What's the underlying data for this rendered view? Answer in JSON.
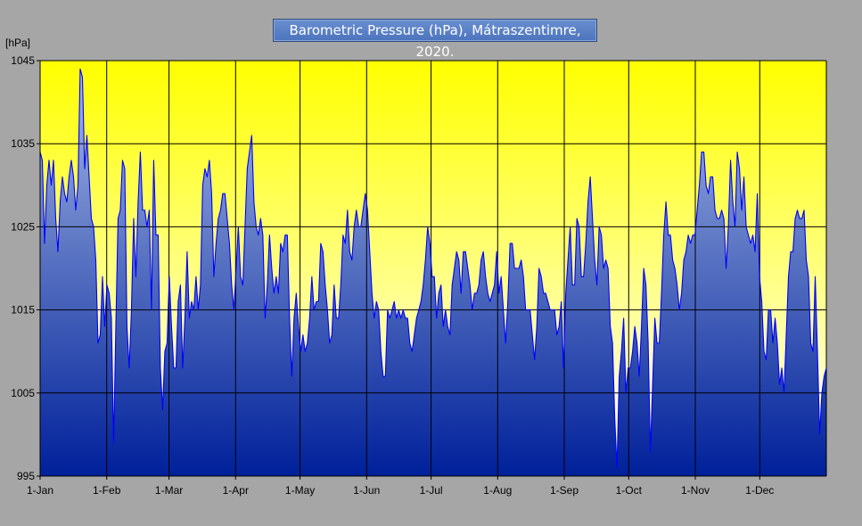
{
  "chart_data": {
    "type": "area",
    "title": "Barometric Pressure (hPa), Mátraszentimre, 2020.",
    "ylabel": "[hPa]",
    "xlabel": "",
    "ylim": [
      995,
      1045
    ],
    "yticks": [
      995,
      1005,
      1015,
      1025,
      1035,
      1045
    ],
    "xlim": [
      0,
      366
    ],
    "xticks": [
      {
        "day": 0,
        "label": "1-Jan"
      },
      {
        "day": 31,
        "label": "1-Feb"
      },
      {
        "day": 60,
        "label": "1-Mar"
      },
      {
        "day": 91,
        "label": "1-Apr"
      },
      {
        "day": 121,
        "label": "1-May"
      },
      {
        "day": 152,
        "label": "1-Jun"
      },
      {
        "day": 182,
        "label": "1-Jul"
      },
      {
        "day": 213,
        "label": "1-Aug"
      },
      {
        "day": 244,
        "label": "1-Sep"
      },
      {
        "day": 274,
        "label": "1-Oct"
      },
      {
        "day": 305,
        "label": "1-Nov"
      },
      {
        "day": 335,
        "label": "1-Dec"
      }
    ],
    "grid": true,
    "colors": {
      "plot_top": "#ffff00",
      "plot_bottom": "#ffffff",
      "fill_top": "#a8bde6",
      "fill_bottom": "#00209a",
      "line": "#0000ff",
      "grid": "#000000",
      "background": "#a6a6a6"
    },
    "series": [
      {
        "values": [
          1034,
          1033,
          1023,
          1030,
          1033,
          1030,
          1033,
          1026,
          1022,
          1028,
          1031,
          1029,
          1028,
          1031,
          1033,
          1031,
          1027,
          1030,
          1044,
          1043,
          1032,
          1036,
          1031,
          1026,
          1025,
          1021,
          1011,
          1012,
          1019,
          1013,
          1018,
          1017,
          1014,
          999,
          1013,
          1026,
          1027,
          1033,
          1032,
          1013,
          1008,
          1015,
          1026,
          1019,
          1028,
          1034,
          1027,
          1027,
          1025,
          1027,
          1015,
          1033,
          1024,
          1024,
          1008,
          1003,
          1010,
          1011,
          1019,
          1013,
          1008,
          1008,
          1016,
          1018,
          1008,
          1014,
          1022,
          1014,
          1016,
          1015,
          1019,
          1015,
          1018,
          1030,
          1032,
          1031,
          1033,
          1029,
          1019,
          1023,
          1026,
          1027,
          1029,
          1029,
          1026,
          1023,
          1018,
          1015,
          1020,
          1025,
          1019,
          1018,
          1025,
          1032,
          1034,
          1036,
          1028,
          1025,
          1024,
          1026,
          1024,
          1014,
          1018,
          1024,
          1020,
          1017,
          1019,
          1017,
          1023,
          1022,
          1024,
          1024,
          1014,
          1007,
          1014,
          1017,
          1013,
          1010,
          1012,
          1010,
          1011,
          1014,
          1019,
          1015,
          1016,
          1016,
          1023,
          1022,
          1018,
          1015,
          1011,
          1012,
          1018,
          1014,
          1014,
          1018,
          1024,
          1023,
          1027,
          1022,
          1021,
          1025,
          1027,
          1025,
          1025,
          1027,
          1029,
          1027,
          1022,
          1017,
          1014,
          1016,
          1015,
          1010,
          1007,
          1007,
          1015,
          1014,
          1015,
          1016,
          1014,
          1015,
          1014,
          1015,
          1014,
          1014,
          1011,
          1010,
          1012,
          1014,
          1015,
          1016,
          1018,
          1021,
          1025,
          1023,
          1019,
          1019,
          1014,
          1017,
          1018,
          1013,
          1015,
          1013,
          1012,
          1018,
          1020,
          1022,
          1021,
          1017,
          1022,
          1022,
          1020,
          1018,
          1015,
          1017,
          1017,
          1018,
          1021,
          1022,
          1019,
          1017,
          1016,
          1017,
          1018,
          1022,
          1017,
          1019,
          1015,
          1011,
          1016,
          1023,
          1023,
          1020,
          1020,
          1020,
          1021,
          1019,
          1015,
          1015,
          1015,
          1012,
          1009,
          1013,
          1020,
          1019,
          1017,
          1017,
          1016,
          1015,
          1015,
          1015,
          1012,
          1013,
          1016,
          1008,
          1017,
          1021,
          1025,
          1018,
          1018,
          1026,
          1025,
          1019,
          1019,
          1023,
          1028,
          1031,
          1026,
          1021,
          1018,
          1025,
          1024,
          1020,
          1021,
          1020,
          1013,
          1011,
          1002,
          996,
          1007,
          1010,
          1014,
          1005,
          1008,
          1008,
          1010,
          1013,
          1011,
          1007,
          1013,
          1020,
          1018,
          1011,
          998,
          1006,
          1014,
          1011,
          1011,
          1017,
          1024,
          1028,
          1024,
          1024,
          1021,
          1020,
          1018,
          1015,
          1017,
          1021,
          1022,
          1024,
          1023,
          1024,
          1024,
          1027,
          1030,
          1034,
          1034,
          1030,
          1029,
          1031,
          1031,
          1027,
          1026,
          1026,
          1027,
          1026,
          1020,
          1025,
          1033,
          1028,
          1025,
          1034,
          1032,
          1027,
          1031,
          1025,
          1024,
          1023,
          1024,
          1022,
          1029,
          1019,
          1016,
          1010,
          1009,
          1015,
          1015,
          1011,
          1014,
          1011,
          1006,
          1008,
          1005,
          1012,
          1019,
          1022,
          1022,
          1026,
          1027,
          1026,
          1026,
          1027,
          1021,
          1019,
          1011,
          1010,
          1019,
          1010,
          1000,
          1005,
          1007,
          1008
        ]
      }
    ]
  }
}
